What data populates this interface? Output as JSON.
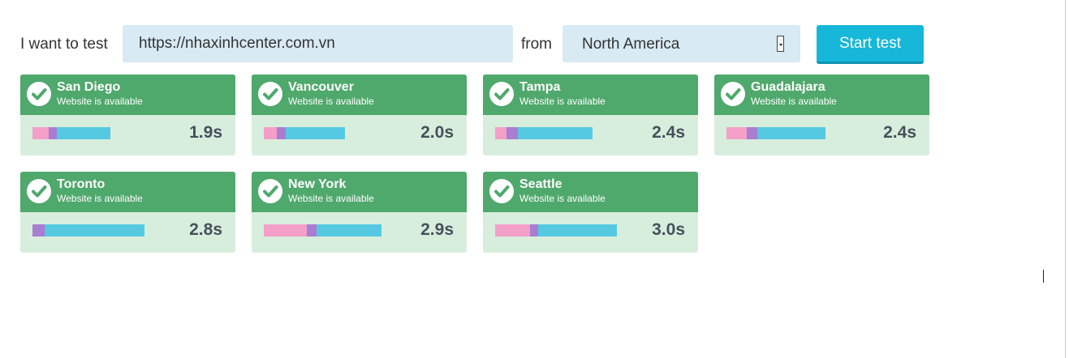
{
  "form": {
    "lead_label": "I want to test",
    "url_value": "https://nhaxinhcenter.com.vn",
    "from_label": "from",
    "region_selected": "North America",
    "start_button": "Start test"
  },
  "results": [
    {
      "city": "San Diego",
      "status": "Website is available",
      "time": "1.9s"
    },
    {
      "city": "Vancouver",
      "status": "Website is available",
      "time": "2.0s"
    },
    {
      "city": "Tampa",
      "status": "Website is available",
      "time": "2.4s"
    },
    {
      "city": "Guadalajara",
      "status": "Website is available",
      "time": "2.4s"
    },
    {
      "city": "Toronto",
      "status": "Website is available",
      "time": "2.8s"
    },
    {
      "city": "New York",
      "status": "Website is available",
      "time": "2.9s"
    },
    {
      "city": "Seattle",
      "status": "Website is available",
      "time": "3.0s"
    }
  ],
  "colors": {
    "header_green": "#4fa86c",
    "body_green": "#d8eedd",
    "dns_pink": "#f39fc7",
    "connect_purple": "#a97dd1",
    "load_blue": "#56c9e2",
    "button_blue": "#16b7d9"
  },
  "icons": {
    "status": "check-circle-icon"
  }
}
